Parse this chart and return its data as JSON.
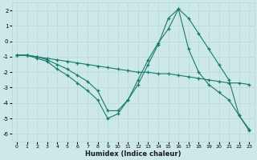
{
  "xlabel": "Humidex (Indice chaleur)",
  "bg_color": "#cce8e8",
  "line_color": "#1a7a6a",
  "grid_color": "#b8d8d8",
  "xlim": [
    -0.5,
    23.5
  ],
  "ylim": [
    -6.5,
    2.5
  ],
  "yticks": [
    -6,
    -5,
    -4,
    -3,
    -2,
    -1,
    0,
    1,
    2
  ],
  "xticks": [
    0,
    1,
    2,
    3,
    4,
    5,
    6,
    7,
    8,
    9,
    10,
    11,
    12,
    13,
    14,
    15,
    16,
    17,
    18,
    19,
    20,
    21,
    22,
    23
  ],
  "series": [
    {
      "x": [
        0,
        1,
        2,
        3,
        4,
        5,
        6,
        7,
        8,
        9,
        10,
        11,
        12,
        13,
        14,
        15,
        16,
        17,
        18,
        19,
        20,
        21,
        22,
        23
      ],
      "y": [
        -0.9,
        -0.9,
        -1.0,
        -1.1,
        -1.2,
        -1.3,
        -1.4,
        -1.5,
        -1.6,
        -1.7,
        -1.8,
        -1.9,
        -2.0,
        -2.0,
        -2.1,
        -2.1,
        -2.2,
        -2.3,
        -2.4,
        -2.5,
        -2.6,
        -2.7,
        -2.7,
        -2.8
      ]
    },
    {
      "x": [
        0,
        1,
        2,
        3,
        4,
        5,
        6,
        7,
        8,
        9,
        10,
        11,
        12,
        13,
        14,
        15,
        16,
        17,
        18,
        19,
        20,
        21,
        22,
        23
      ],
      "y": [
        -0.9,
        -0.9,
        -1.0,
        -1.2,
        -1.5,
        -1.8,
        -2.2,
        -2.6,
        -3.2,
        -4.5,
        -4.5,
        -3.8,
        -2.5,
        -1.2,
        -0.1,
        0.8,
        2.1,
        1.5,
        0.5,
        -0.5,
        -1.5,
        -2.5,
        -4.8,
        -5.8
      ]
    },
    {
      "x": [
        0,
        1,
        2,
        3,
        4,
        5,
        6,
        7,
        8,
        9,
        10,
        11,
        12,
        13,
        14,
        15,
        16,
        17,
        18,
        19,
        20,
        21,
        22,
        23
      ],
      "y": [
        -0.9,
        -0.9,
        -1.1,
        -1.3,
        -1.8,
        -2.2,
        -2.7,
        -3.2,
        -3.8,
        -5.0,
        -4.7,
        -3.8,
        -2.8,
        -1.5,
        -0.2,
        1.5,
        2.1,
        -0.5,
        -2.0,
        -2.8,
        -3.3,
        -3.8,
        -4.8,
        -5.7
      ]
    }
  ]
}
